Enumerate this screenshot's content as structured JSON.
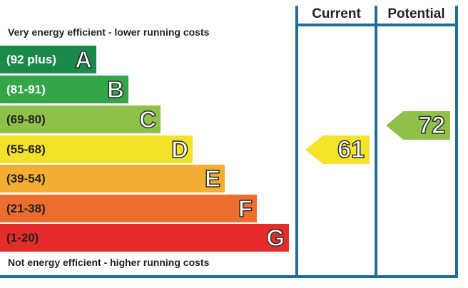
{
  "header": {
    "current_label": "Current",
    "potential_label": "Potential"
  },
  "captions": {
    "top": "Very energy efficient - lower running costs",
    "bottom": "Not energy efficient - higher running costs"
  },
  "bands": [
    {
      "letter": "A",
      "range": "(92 plus)",
      "color": "#1a8a4a",
      "text_color": "#ffffff"
    },
    {
      "letter": "B",
      "range": "(81-91)",
      "color": "#34a548",
      "text_color": "#ffffff"
    },
    {
      "letter": "C",
      "range": "(69-80)",
      "color": "#8fc04a",
      "text_color": "#222222"
    },
    {
      "letter": "D",
      "range": "(55-68)",
      "color": "#f3e22a",
      "text_color": "#222222"
    },
    {
      "letter": "E",
      "range": "(39-54)",
      "color": "#f2ad33",
      "text_color": "#222222"
    },
    {
      "letter": "F",
      "range": "(21-38)",
      "color": "#ec6d2e",
      "text_color": "#222222"
    },
    {
      "letter": "G",
      "range": "(1-20)",
      "color": "#e52c2b",
      "text_color": "#222222"
    }
  ],
  "ratings": {
    "current": {
      "value": "61",
      "band": "D",
      "color": "#f5e32b"
    },
    "potential": {
      "value": "72",
      "band": "C",
      "color": "#8fc04a"
    }
  },
  "colors": {
    "frame": "#1e6f93"
  }
}
